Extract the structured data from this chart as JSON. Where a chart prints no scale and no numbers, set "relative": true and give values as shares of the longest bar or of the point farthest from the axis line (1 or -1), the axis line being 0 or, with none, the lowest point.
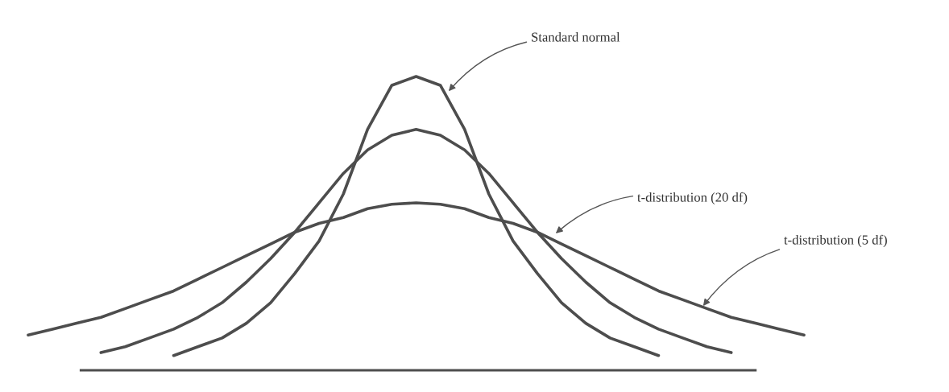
{
  "chart_data": {
    "type": "line",
    "relative": true,
    "tick_labels": false,
    "categories": [
      null,
      null,
      null,
      null,
      null,
      null,
      null,
      null,
      null,
      null,
      null,
      null,
      null,
      null,
      null,
      null,
      null,
      null,
      null,
      null,
      null,
      null,
      null,
      null,
      null,
      null,
      null,
      null,
      null,
      null,
      null,
      null,
      null
    ],
    "series": [
      {
        "color": "#4d4d4d",
        "values": [
          null,
          null,
          null,
          null,
          null,
          null,
          0.05,
          0.08,
          0.11,
          0.16,
          0.23,
          0.33,
          0.44,
          0.6,
          0.82,
          0.97,
          1.0,
          0.97,
          0.82,
          0.6,
          0.44,
          0.33,
          0.23,
          0.16,
          0.11,
          0.08,
          0.05,
          null,
          null,
          null,
          null,
          null,
          null
        ]
      },
      {
        "color": "#4d4d4d",
        "values": [
          null,
          null,
          null,
          0.06,
          0.08,
          0.11,
          0.14,
          0.18,
          0.23,
          0.3,
          0.38,
          0.47,
          0.57,
          0.67,
          0.75,
          0.8,
          0.82,
          0.8,
          0.75,
          0.67,
          0.57,
          0.47,
          0.38,
          0.3,
          0.23,
          0.18,
          0.14,
          0.11,
          0.08,
          0.06,
          null,
          null,
          null
        ]
      },
      {
        "color": "#4d4d4d",
        "values": [
          0.12,
          0.14,
          0.16,
          0.18,
          0.21,
          0.24,
          0.27,
          0.31,
          0.35,
          0.39,
          0.43,
          0.47,
          0.5,
          0.52,
          0.55,
          0.565,
          0.57,
          0.565,
          0.55,
          0.52,
          0.5,
          0.47,
          0.43,
          0.39,
          0.35,
          0.31,
          0.27,
          0.24,
          0.21,
          0.18,
          0.16,
          0.14,
          0.12
        ]
      }
    ],
    "annotations": [
      "Standard normal",
      "t-distribution (20 df)",
      "t-distribution (5 df)"
    ]
  }
}
